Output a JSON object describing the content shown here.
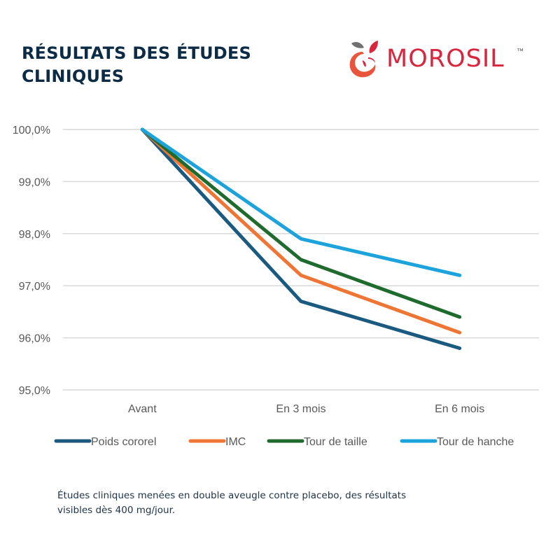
{
  "header": {
    "title_line1": "RÉSULTATS DES ÉTUDES",
    "title_line2": "CLINIQUES"
  },
  "logo": {
    "brand": "MOROSIL",
    "trademark": "™",
    "icon": "fruit-icon",
    "brand_color": "#d7263d"
  },
  "chart_data": {
    "type": "line",
    "title": "",
    "xlabel": "",
    "ylabel": "",
    "categories": [
      "Avant",
      "En 3 mois",
      "En 6 mois"
    ],
    "ylim": [
      95.0,
      100.0
    ],
    "yticks": [
      100.0,
      99.0,
      98.0,
      97.0,
      96.0,
      95.0
    ],
    "ytick_labels": [
      "100,0%",
      "99,0%",
      "98,0%",
      "97,0%",
      "96,0%",
      "95,0%"
    ],
    "grid": true,
    "legend_position": "bottom",
    "series": [
      {
        "name": "Poids cororel",
        "color": "#1b5a80",
        "values": [
          100.0,
          96.7,
          95.8
        ]
      },
      {
        "name": "IMC",
        "color": "#ee7533",
        "values": [
          100.0,
          97.2,
          96.1
        ]
      },
      {
        "name": "Tour de taille",
        "color": "#1f6b2e",
        "values": [
          100.0,
          97.5,
          96.4
        ]
      },
      {
        "name": "Tour de hanche",
        "color": "#1ca3dc",
        "values": [
          100.0,
          97.9,
          97.2
        ]
      }
    ]
  },
  "footnote": {
    "line1": "Études cliniques menées en double aveugle contre placebo, des résultats",
    "line2": "visibles dès 400 mg/jour."
  }
}
